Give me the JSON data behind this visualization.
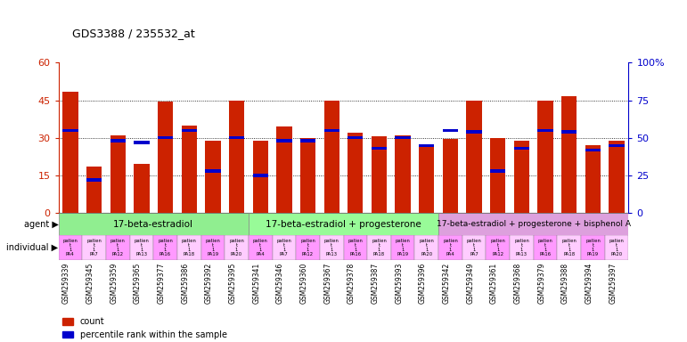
{
  "title": "GDS3388 / 235532_at",
  "gsm_ids": [
    "GSM259339",
    "GSM259345",
    "GSM259359",
    "GSM259365",
    "GSM259377",
    "GSM259386",
    "GSM259392",
    "GSM259395",
    "GSM259341",
    "GSM259346",
    "GSM259360",
    "GSM259367",
    "GSM259378",
    "GSM259387",
    "GSM259393",
    "GSM259396",
    "GSM259342",
    "GSM259349",
    "GSM259361",
    "GSM259368",
    "GSM259379",
    "GSM259388",
    "GSM259394",
    "GSM259397"
  ],
  "counts": [
    48.5,
    18.5,
    31.0,
    19.5,
    44.5,
    35.0,
    29.0,
    45.0,
    29.0,
    34.5,
    30.0,
    45.0,
    32.0,
    30.5,
    31.0,
    27.5,
    29.5,
    45.0,
    30.0,
    29.0,
    45.0,
    46.5,
    27.0,
    29.0
  ],
  "percentile_ranks": [
    55,
    22,
    48,
    47,
    50,
    55,
    28,
    50,
    25,
    48,
    48,
    55,
    50,
    43,
    50,
    45,
    55,
    54,
    28,
    43,
    55,
    54,
    42,
    45
  ],
  "agent_groups": [
    {
      "label": "17-beta-estradiol",
      "start": 0,
      "end": 8,
      "color": "#90EE90"
    },
    {
      "label": "17-beta-estradiol + progesterone",
      "start": 8,
      "end": 16,
      "color": "#98FB98"
    },
    {
      "label": "17-beta-estradiol + progesterone + bisphenol A",
      "start": 16,
      "end": 24,
      "color": "#DDA0DD"
    }
  ],
  "bar_color": "#CC2200",
  "percentile_color": "#0000CC",
  "ylim_left": [
    0,
    60
  ],
  "ylim_right": [
    0,
    100
  ],
  "yticks_left": [
    0,
    15,
    30,
    45,
    60
  ],
  "ytick_labels_left": [
    "0",
    "15",
    "30",
    "45",
    "60"
  ],
  "yticks_right": [
    0,
    25,
    50,
    75,
    100
  ],
  "ytick_labels_right": [
    "0",
    "25",
    "50",
    "75",
    "100%"
  ],
  "individual_colors": [
    "#FF99FF",
    "#FFCCFF"
  ],
  "agent_label": "agent",
  "individual_label": "individual",
  "legend_count": "count",
  "legend_percentile": "percentile rank within the sample"
}
